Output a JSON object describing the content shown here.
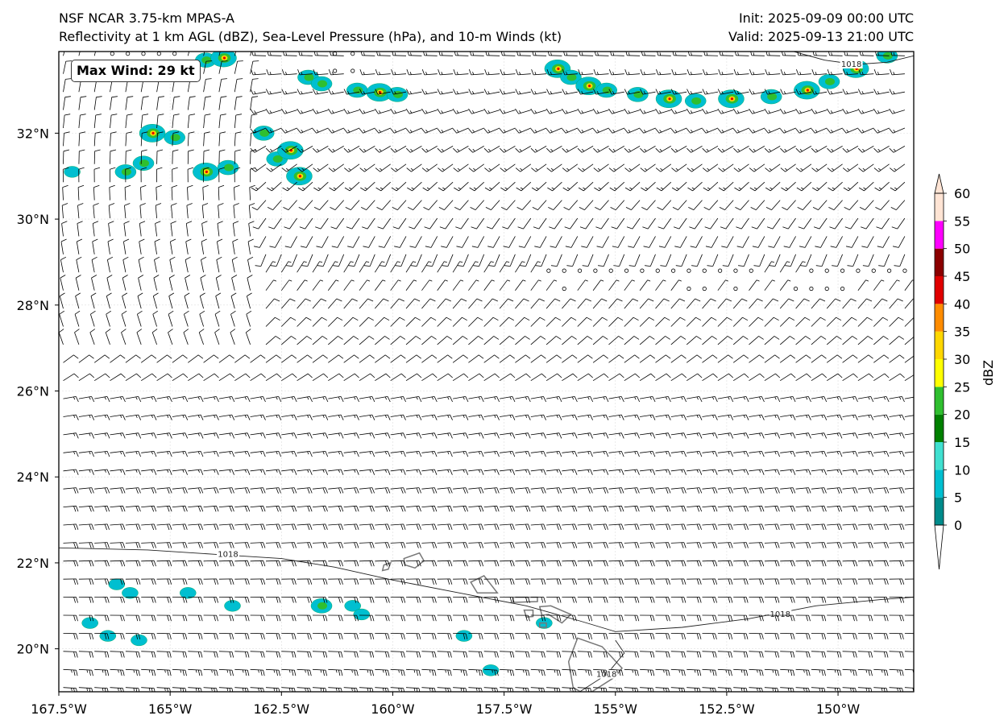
{
  "header": {
    "model_name": "NSF NCAR 3.75-km MPAS-A",
    "fields": "Reflectivity at 1 km AGL (dBZ), Sea-Level Pressure (hPa), and 10-m Winds (kt)",
    "init": "Init: 2025-09-09 00:00 UTC",
    "valid": "Valid: 2025-09-13 21:00 UTC"
  },
  "annotation": {
    "max_wind": "Max Wind: 29 kt"
  },
  "map": {
    "extent": {
      "lon_min": -167.5,
      "lon_max": -148.3,
      "lat_min": 19.0,
      "lat_max": 33.9
    },
    "lon_ticks": [
      {
        "value": -167.5,
        "label": "167.5°W"
      },
      {
        "value": -165.0,
        "label": "165°W"
      },
      {
        "value": -162.5,
        "label": "162.5°W"
      },
      {
        "value": -160.0,
        "label": "160°W"
      },
      {
        "value": -157.5,
        "label": "157.5°W"
      },
      {
        "value": -155.0,
        "label": "155°W"
      },
      {
        "value": -152.5,
        "label": "152.5°W"
      },
      {
        "value": -150.0,
        "label": "150°W"
      }
    ],
    "lat_ticks": [
      {
        "value": 32,
        "label": "32°N"
      },
      {
        "value": 30,
        "label": "30°N"
      },
      {
        "value": 28,
        "label": "28°N"
      },
      {
        "value": 26,
        "label": "26°N"
      },
      {
        "value": 24,
        "label": "24°N"
      },
      {
        "value": 22,
        "label": "22°N"
      },
      {
        "value": 20,
        "label": "20°N"
      }
    ],
    "isobars": [
      {
        "label": "1018",
        "points": [
          [
            -167.5,
            22.35
          ],
          [
            -165.5,
            22.3
          ],
          [
            -164.0,
            22.2
          ],
          [
            -162.5,
            22.1
          ],
          [
            -161.3,
            21.9
          ],
          [
            -160.0,
            21.6
          ],
          [
            -158.5,
            21.3
          ],
          [
            -157.0,
            21.0
          ],
          [
            -155.8,
            20.65
          ],
          [
            -155.0,
            20.4
          ],
          [
            -153.5,
            20.5
          ],
          [
            -152.0,
            20.7
          ],
          [
            -150.5,
            21.0
          ],
          [
            -149.0,
            21.15
          ],
          [
            -148.3,
            21.2
          ]
        ],
        "label_positions": [
          [
            -163.7,
            22.2
          ],
          [
            -151.3,
            20.8
          ]
        ]
      },
      {
        "label": "1018",
        "points": [
          [
            -155.8,
            19.0
          ],
          [
            -155.2,
            19.4
          ],
          [
            -154.8,
            19.9
          ],
          [
            -155.0,
            20.2
          ]
        ],
        "label_positions": [
          [
            -155.2,
            19.4
          ]
        ]
      },
      {
        "label": "1018",
        "points": [
          [
            -151.0,
            33.9
          ],
          [
            -150.3,
            33.7
          ],
          [
            -149.6,
            33.6
          ],
          [
            -148.9,
            33.65
          ],
          [
            -148.3,
            33.8
          ]
        ],
        "label_positions": [
          [
            -149.7,
            33.6
          ]
        ]
      }
    ],
    "islands": [
      {
        "name": "Kauai",
        "points": [
          [
            -159.75,
            22.1
          ],
          [
            -159.4,
            22.23
          ],
          [
            -159.3,
            22.05
          ],
          [
            -159.5,
            21.88
          ],
          [
            -159.72,
            21.95
          ]
        ]
      },
      {
        "name": "Niihau",
        "points": [
          [
            -160.2,
            21.95
          ],
          [
            -160.05,
            22.0
          ],
          [
            -160.1,
            21.85
          ],
          [
            -160.23,
            21.82
          ]
        ]
      },
      {
        "name": "Oahu",
        "points": [
          [
            -158.25,
            21.55
          ],
          [
            -157.95,
            21.7
          ],
          [
            -157.65,
            21.3
          ],
          [
            -158.1,
            21.3
          ]
        ]
      },
      {
        "name": "Molokai",
        "points": [
          [
            -157.3,
            21.2
          ],
          [
            -156.75,
            21.2
          ],
          [
            -156.75,
            21.1
          ],
          [
            -157.3,
            21.08
          ]
        ]
      },
      {
        "name": "Lanai",
        "points": [
          [
            -157.05,
            20.9
          ],
          [
            -156.85,
            20.9
          ],
          [
            -156.85,
            20.75
          ],
          [
            -157.0,
            20.74
          ]
        ]
      },
      {
        "name": "Maui",
        "points": [
          [
            -156.7,
            20.98
          ],
          [
            -156.45,
            21.0
          ],
          [
            -156.0,
            20.8
          ],
          [
            -156.2,
            20.6
          ],
          [
            -156.5,
            20.8
          ],
          [
            -156.65,
            20.78
          ]
        ]
      },
      {
        "name": "Kahoolawe",
        "points": [
          [
            -156.7,
            20.6
          ],
          [
            -156.55,
            20.6
          ],
          [
            -156.55,
            20.5
          ],
          [
            -156.7,
            20.5
          ]
        ]
      },
      {
        "name": "Hawaii",
        "points": [
          [
            -155.85,
            20.25
          ],
          [
            -155.3,
            20.05
          ],
          [
            -154.85,
            19.55
          ],
          [
            -155.0,
            19.35
          ],
          [
            -155.65,
            18.92
          ],
          [
            -155.95,
            19.1
          ],
          [
            -156.05,
            19.7
          ]
        ]
      }
    ],
    "calm_points": [
      [
        -166.3,
        33.85
      ],
      [
        -165.95,
        33.85
      ],
      [
        -165.6,
        33.85
      ],
      [
        -165.25,
        33.85
      ],
      [
        -164.9,
        33.85
      ],
      [
        -161.3,
        33.85
      ],
      [
        -160.9,
        33.85
      ],
      [
        -161.3,
        33.45
      ],
      [
        -160.9,
        33.45
      ],
      [
        -156.5,
        28.8
      ],
      [
        -156.15,
        28.8
      ],
      [
        -155.8,
        28.8
      ],
      [
        -155.45,
        28.8
      ],
      [
        -155.1,
        28.8
      ],
      [
        -154.75,
        28.8
      ],
      [
        -154.4,
        28.8
      ],
      [
        -154.05,
        28.8
      ],
      [
        -153.7,
        28.8
      ],
      [
        -153.35,
        28.8
      ],
      [
        -153.0,
        28.8
      ],
      [
        -152.65,
        28.8
      ],
      [
        -152.3,
        28.8
      ],
      [
        -151.95,
        28.8
      ],
      [
        -150.6,
        28.8
      ],
      [
        -150.25,
        28.8
      ],
      [
        -149.9,
        28.8
      ],
      [
        -149.55,
        28.8
      ],
      [
        -149.2,
        28.8
      ],
      [
        -148.85,
        28.8
      ],
      [
        -148.5,
        28.8
      ],
      [
        -156.15,
        28.38
      ],
      [
        -153.35,
        28.38
      ],
      [
        -153.0,
        28.38
      ],
      [
        -152.3,
        28.38
      ],
      [
        -150.95,
        28.38
      ],
      [
        -150.6,
        28.38
      ],
      [
        -150.25,
        28.38
      ],
      [
        -149.9,
        28.38
      ]
    ],
    "reflectivity_cells": [
      [
        -164.2,
        33.7,
        2
      ],
      [
        -163.8,
        33.75,
        3
      ],
      [
        -161.9,
        33.3,
        2
      ],
      [
        -161.6,
        33.15,
        2
      ],
      [
        -160.8,
        33.0,
        2
      ],
      [
        -160.3,
        32.95,
        3
      ],
      [
        -159.9,
        32.9,
        2
      ],
      [
        -156.3,
        33.5,
        3
      ],
      [
        -156.0,
        33.3,
        2
      ],
      [
        -155.6,
        33.1,
        3
      ],
      [
        -155.2,
        33.0,
        2
      ],
      [
        -154.5,
        32.9,
        2
      ],
      [
        -153.8,
        32.8,
        3
      ],
      [
        -153.2,
        32.75,
        2
      ],
      [
        -152.4,
        32.8,
        3
      ],
      [
        -151.5,
        32.85,
        2
      ],
      [
        -150.7,
        33.0,
        3
      ],
      [
        -150.2,
        33.2,
        2
      ],
      [
        -149.6,
        33.5,
        3
      ],
      [
        -148.9,
        33.8,
        2
      ],
      [
        -165.4,
        32.0,
        3
      ],
      [
        -164.9,
        31.9,
        2
      ],
      [
        -164.2,
        31.1,
        3
      ],
      [
        -163.7,
        31.2,
        2
      ],
      [
        -162.9,
        32.0,
        2
      ],
      [
        -162.6,
        31.4,
        2
      ],
      [
        -162.3,
        31.6,
        3
      ],
      [
        -162.1,
        31.0,
        3
      ],
      [
        -166.0,
        31.1,
        2
      ],
      [
        -165.6,
        31.3,
        2
      ],
      [
        -167.2,
        31.1,
        1
      ],
      [
        -166.2,
        21.5,
        1
      ],
      [
        -165.9,
        21.3,
        1
      ],
      [
        -164.6,
        21.3,
        1
      ],
      [
        -163.6,
        21.0,
        1
      ],
      [
        -161.6,
        21.0,
        2
      ],
      [
        -160.9,
        21.0,
        1
      ],
      [
        -160.7,
        20.8,
        1
      ],
      [
        -166.8,
        20.6,
        1
      ],
      [
        -166.4,
        20.3,
        1
      ],
      [
        -165.7,
        20.2,
        1
      ],
      [
        -158.4,
        20.3,
        1
      ],
      [
        -156.6,
        20.6,
        1
      ],
      [
        -157.8,
        19.5,
        1
      ]
    ]
  },
  "colorbar": {
    "units": "dBZ",
    "levels": [
      0,
      5,
      10,
      15,
      20,
      25,
      30,
      35,
      40,
      45,
      50,
      55,
      60
    ],
    "colors": [
      "#008b8b",
      "#00bfd0",
      "#40e0d0",
      "#008000",
      "#2fbf2f",
      "#ffff00",
      "#ffd700",
      "#ff8c00",
      "#e00000",
      "#8b0000",
      "#ff00ff",
      "#ffe4d4"
    ],
    "extend_colors": {
      "under": "#ffffff",
      "over": "#ffe4d4"
    }
  },
  "colors": {
    "barb": "#000000",
    "isobar": "#222222",
    "coastline": "#777777",
    "grid": "#dddddd"
  }
}
